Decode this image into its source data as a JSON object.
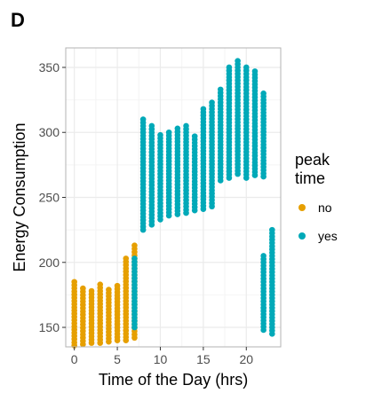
{
  "panel_label": "D",
  "colors": {
    "no": "#E69F00",
    "yes": "#00A9B8",
    "grid_major": "#ebebeb",
    "grid_minor": "#f4f4f4",
    "border": "#b3b3b3"
  },
  "chart_data": {
    "type": "scatter",
    "xlabel": "Time of the Day (hrs)",
    "ylabel": "Energy Consumption",
    "xlim": [
      -1,
      24
    ],
    "ylim": [
      135,
      365
    ],
    "xticks": [
      0,
      5,
      10,
      15,
      20
    ],
    "yticks": [
      150,
      200,
      250,
      300,
      350
    ],
    "grid": true,
    "legend": {
      "title": [
        "peak",
        "time"
      ],
      "placement": "right",
      "entries": [
        {
          "label": "no",
          "color": "#E69F00"
        },
        {
          "label": "yes",
          "color": "#00A9B8"
        }
      ]
    },
    "series": [
      {
        "name": "no",
        "color": "#E69F00",
        "columns": [
          {
            "x": 0,
            "min": 136,
            "max": 185
          },
          {
            "x": 1,
            "min": 137,
            "max": 180
          },
          {
            "x": 2,
            "min": 138,
            "max": 178
          },
          {
            "x": 3,
            "min": 138,
            "max": 183
          },
          {
            "x": 4,
            "min": 139,
            "max": 179
          },
          {
            "x": 5,
            "min": 140,
            "max": 182
          },
          {
            "x": 6,
            "min": 140,
            "max": 203
          },
          {
            "x": 7,
            "min": 142,
            "max": 213
          }
        ]
      },
      {
        "name": "yes",
        "color": "#00A9B8",
        "columns": [
          {
            "x": 7,
            "min": 150,
            "max": 203
          },
          {
            "x": 8,
            "min": 225,
            "max": 310
          },
          {
            "x": 9,
            "min": 229,
            "max": 305
          },
          {
            "x": 10,
            "min": 233,
            "max": 298
          },
          {
            "x": 11,
            "min": 236,
            "max": 300
          },
          {
            "x": 12,
            "min": 237,
            "max": 303
          },
          {
            "x": 13,
            "min": 238,
            "max": 305
          },
          {
            "x": 14,
            "min": 240,
            "max": 297
          },
          {
            "x": 15,
            "min": 241,
            "max": 318
          },
          {
            "x": 16,
            "min": 243,
            "max": 323
          },
          {
            "x": 17,
            "min": 263,
            "max": 333
          },
          {
            "x": 18,
            "min": 265,
            "max": 350
          },
          {
            "x": 19,
            "min": 268,
            "max": 355
          },
          {
            "x": 20,
            "min": 265,
            "max": 350
          },
          {
            "x": 21,
            "min": 267,
            "max": 347
          },
          {
            "x": 22,
            "min": 266,
            "max": 330
          },
          {
            "x": 22,
            "min": 165,
            "max": 205
          },
          {
            "x": 22,
            "min": 148,
            "max": 165
          },
          {
            "x": 23,
            "min": 145,
            "max": 225
          }
        ]
      }
    ]
  }
}
